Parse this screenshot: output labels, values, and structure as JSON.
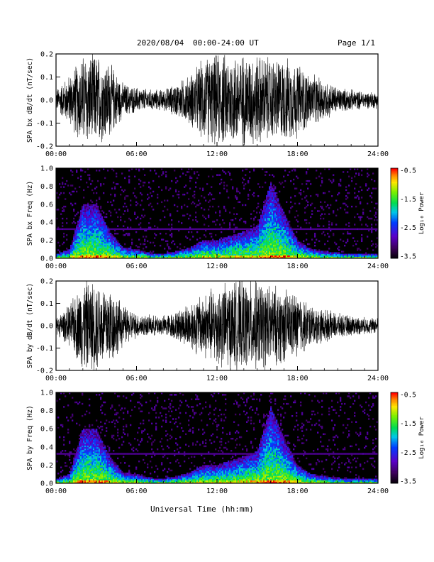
{
  "header": {
    "date": "2020/08/04",
    "time_range": "00:00-24:00 UT",
    "page": "Page 1/1"
  },
  "xaxis_label": "Universal Time (hh:mm)",
  "x_ticks": [
    "00:00",
    "06:00",
    "12:00",
    "18:00",
    "24:00"
  ],
  "colorbar": {
    "label": "Log₁₀ Power",
    "ticks": [
      "-0.5",
      "-1.5",
      "-2.5",
      "-3.5"
    ],
    "range": [
      -3.5,
      -0.5
    ]
  },
  "chart_data": [
    {
      "type": "line",
      "ylabel": "SPA bx dB/dt (nT/sec)",
      "ylim": [
        -0.2,
        0.2
      ],
      "y_ticks": [
        "-0.2",
        "-0.1",
        "0.0",
        "0.1",
        "0.2"
      ],
      "x_range_hours": [
        0,
        24
      ],
      "envelope_hours": [
        0,
        1,
        2,
        3,
        4,
        5,
        6,
        7,
        8,
        9,
        10,
        11,
        12,
        13,
        14,
        15,
        16,
        17,
        18,
        19,
        20,
        21,
        22,
        23,
        24
      ],
      "envelope_amplitude": [
        0.05,
        0.12,
        0.22,
        0.22,
        0.18,
        0.08,
        0.06,
        0.05,
        0.05,
        0.08,
        0.12,
        0.2,
        0.22,
        0.22,
        0.22,
        0.22,
        0.2,
        0.2,
        0.18,
        0.12,
        0.1,
        0.06,
        0.05,
        0.04,
        0.04
      ]
    },
    {
      "type": "heatmap",
      "ylabel": "SPA bx Freq (Hz)",
      "ylim": [
        0,
        1.0
      ],
      "y_ticks": [
        "0.0",
        "0.2",
        "0.4",
        "0.6",
        "0.8",
        "1.0"
      ],
      "x_range_hours": [
        0,
        24
      ],
      "activity_hours": [
        0,
        1,
        2,
        3,
        4,
        5,
        6,
        7,
        8,
        9,
        10,
        11,
        12,
        13,
        14,
        15,
        16,
        17,
        18,
        19,
        20,
        21,
        22,
        23,
        24
      ],
      "activity_top_hz": [
        0.05,
        0.1,
        0.6,
        0.6,
        0.3,
        0.12,
        0.1,
        0.06,
        0.05,
        0.08,
        0.12,
        0.2,
        0.2,
        0.25,
        0.3,
        0.35,
        0.85,
        0.5,
        0.2,
        0.1,
        0.08,
        0.06,
        0.05,
        0.05,
        0.05
      ]
    },
    {
      "type": "line",
      "ylabel": "SPA by dB/dt (nT/sec)",
      "ylim": [
        -0.2,
        0.2
      ],
      "y_ticks": [
        "-0.2",
        "-0.1",
        "0.0",
        "0.1",
        "0.2"
      ],
      "x_range_hours": [
        0,
        24
      ],
      "envelope_hours": [
        0,
        1,
        2,
        3,
        4,
        5,
        6,
        7,
        8,
        9,
        10,
        11,
        12,
        13,
        14,
        15,
        16,
        17,
        18,
        19,
        20,
        21,
        22,
        23,
        24
      ],
      "envelope_amplitude": [
        0.04,
        0.1,
        0.22,
        0.22,
        0.2,
        0.1,
        0.06,
        0.05,
        0.05,
        0.07,
        0.12,
        0.16,
        0.2,
        0.22,
        0.22,
        0.22,
        0.2,
        0.18,
        0.16,
        0.1,
        0.08,
        0.06,
        0.05,
        0.04,
        0.04
      ]
    },
    {
      "type": "heatmap",
      "ylabel": "SPA by Freq (Hz)",
      "ylim": [
        0,
        1.0
      ],
      "y_ticks": [
        "0.0",
        "0.2",
        "0.4",
        "0.6",
        "0.8",
        "1.0"
      ],
      "x_range_hours": [
        0,
        24
      ],
      "activity_hours": [
        0,
        1,
        2,
        3,
        4,
        5,
        6,
        7,
        8,
        9,
        10,
        11,
        12,
        13,
        14,
        15,
        16,
        17,
        18,
        19,
        20,
        21,
        22,
        23,
        24
      ],
      "activity_top_hz": [
        0.05,
        0.1,
        0.6,
        0.6,
        0.3,
        0.12,
        0.1,
        0.06,
        0.05,
        0.08,
        0.12,
        0.2,
        0.2,
        0.25,
        0.3,
        0.35,
        0.85,
        0.5,
        0.2,
        0.1,
        0.08,
        0.06,
        0.05,
        0.05,
        0.05
      ]
    }
  ]
}
